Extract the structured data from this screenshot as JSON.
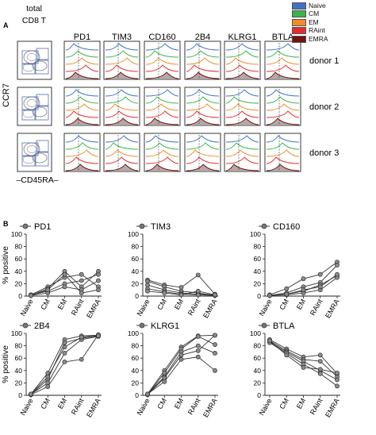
{
  "panel_a": {
    "label": "A",
    "gate_header": [
      "total",
      "CD8 T"
    ],
    "y_axis_label": "CCR7",
    "x_axis_label": "–CD45RA–",
    "markers": [
      "PD1",
      "TIM3",
      "CD160",
      "2B4",
      "KLRG1",
      "BTLA"
    ],
    "donors": [
      "donor 1",
      "donor 2",
      "donor 3"
    ],
    "legend": [
      {
        "name": "Naive",
        "color": "#3f72c4"
      },
      {
        "name": "CM",
        "color": "#3ab54a"
      },
      {
        "name": "EM",
        "color": "#f28c28"
      },
      {
        "name": "RAint",
        "color": "#e32d2d"
      },
      {
        "name": "EMRA",
        "color": "#6e1414"
      }
    ]
  },
  "panel_b": {
    "label": "B"
  },
  "chart_data": [
    {
      "type": "line",
      "title": "PD1",
      "ylabel": "% positive",
      "categories": [
        "Naive",
        "CM",
        "EM",
        "RAint",
        "EMRA"
      ],
      "ylim": [
        0,
        100
      ],
      "yticks": [
        0,
        20,
        40,
        60,
        80,
        100
      ],
      "series": [
        {
          "values": [
            2,
            15,
            30,
            35,
            15
          ]
        },
        {
          "values": [
            1,
            12,
            40,
            15,
            40
          ]
        },
        {
          "values": [
            2,
            8,
            20,
            25,
            35
          ]
        },
        {
          "values": [
            1,
            5,
            15,
            10,
            25
          ]
        },
        {
          "values": [
            1,
            10,
            35,
            5,
            10
          ]
        }
      ]
    },
    {
      "type": "line",
      "title": "TIM3",
      "ylabel": "",
      "categories": [
        "Naive",
        "CM",
        "EM",
        "RAint",
        "EMRA"
      ],
      "ylim": [
        0,
        100
      ],
      "yticks": [
        0,
        20,
        40,
        60,
        80,
        100
      ],
      "series": [
        {
          "values": [
            26,
            18,
            14,
            34,
            3
          ]
        },
        {
          "values": [
            24,
            15,
            8,
            5,
            1
          ]
        },
        {
          "values": [
            18,
            10,
            5,
            3,
            2
          ]
        },
        {
          "values": [
            12,
            7,
            3,
            2,
            1
          ]
        },
        {
          "values": [
            8,
            5,
            2,
            8,
            2
          ]
        }
      ]
    },
    {
      "type": "line",
      "title": "CD160",
      "ylabel": "",
      "categories": [
        "Naive",
        "CM",
        "EM",
        "RAint",
        "EMRA"
      ],
      "ylim": [
        0,
        100
      ],
      "yticks": [
        0,
        20,
        40,
        60,
        80,
        100
      ],
      "series": [
        {
          "values": [
            2,
            12,
            28,
            35,
            55
          ]
        },
        {
          "values": [
            1,
            5,
            15,
            22,
            50
          ]
        },
        {
          "values": [
            1,
            3,
            8,
            18,
            33
          ]
        },
        {
          "values": [
            1,
            2,
            5,
            10,
            30
          ]
        },
        {
          "values": [
            1,
            3,
            10,
            15,
            35
          ]
        }
      ]
    },
    {
      "type": "line",
      "title": "2B4",
      "ylabel": "% positive",
      "categories": [
        "Naive",
        "CM",
        "EM",
        "RAint",
        "EMRA"
      ],
      "ylim": [
        0,
        100
      ],
      "yticks": [
        0,
        20,
        40,
        60,
        80,
        100
      ],
      "series": [
        {
          "values": [
            2,
            36,
            90,
            96,
            97
          ]
        },
        {
          "values": [
            1,
            26,
            85,
            92,
            96
          ]
        },
        {
          "values": [
            2,
            20,
            68,
            90,
            95
          ]
        },
        {
          "values": [
            1,
            14,
            54,
            58,
            98
          ]
        },
        {
          "values": [
            2,
            30,
            78,
            94,
            96
          ]
        }
      ]
    },
    {
      "type": "line",
      "title": "KLRG1",
      "ylabel": "",
      "categories": [
        "Naive",
        "CM",
        "EM",
        "RAint",
        "EMRA"
      ],
      "ylim": [
        0,
        100
      ],
      "yticks": [
        0,
        20,
        40,
        60,
        80,
        100
      ],
      "series": [
        {
          "values": [
            2,
            40,
            78,
            96,
            97
          ]
        },
        {
          "values": [
            1,
            36,
            75,
            95,
            82
          ]
        },
        {
          "values": [
            2,
            30,
            70,
            80,
            68
          ]
        },
        {
          "values": [
            1,
            28,
            65,
            72,
            97
          ]
        },
        {
          "values": [
            2,
            22,
            58,
            62,
            40
          ]
        }
      ]
    },
    {
      "type": "line",
      "title": "BTLA",
      "ylabel": "",
      "categories": [
        "Naive",
        "CM",
        "EM",
        "RAint",
        "EMRA"
      ],
      "ylim": [
        0,
        100
      ],
      "yticks": [
        0,
        20,
        40,
        60,
        80,
        100
      ],
      "series": [
        {
          "values": [
            90,
            75,
            62,
            65,
            35
          ]
        },
        {
          "values": [
            88,
            72,
            58,
            55,
            30
          ]
        },
        {
          "values": [
            86,
            70,
            55,
            40,
            25
          ]
        },
        {
          "values": [
            85,
            68,
            50,
            35,
            15
          ]
        },
        {
          "values": [
            88,
            65,
            45,
            42,
            36
          ]
        }
      ]
    }
  ]
}
